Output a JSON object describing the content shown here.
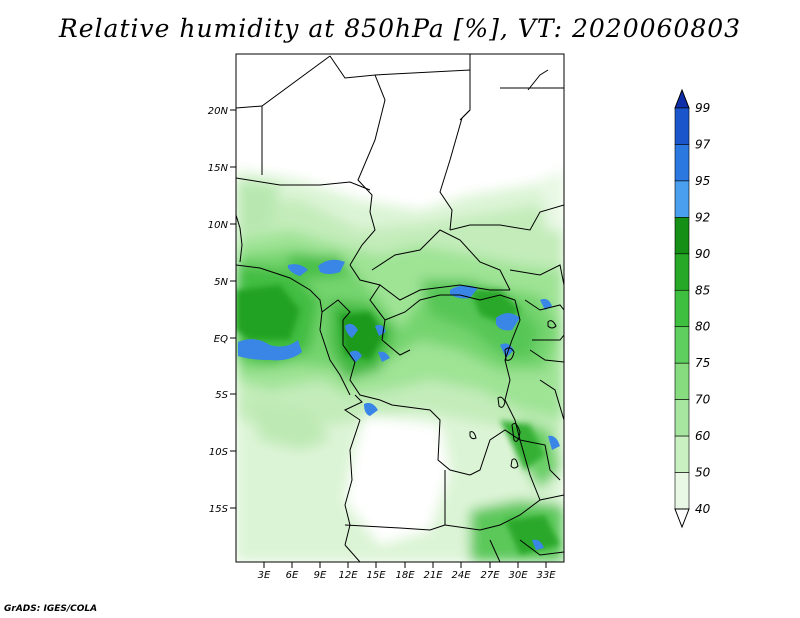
{
  "title": "Relative humidity at 850hPa [%], VT: 2020060803",
  "credit": "GrADS: IGES/COLA",
  "latitude_labels": [
    "20N",
    "15N",
    "10N",
    "5N",
    "EQ",
    "5S",
    "10S",
    "15S"
  ],
  "longitude_labels": [
    "3E",
    "6E",
    "9E",
    "12E",
    "15E",
    "18E",
    "21E",
    "24E",
    "27E",
    "30E",
    "33E"
  ],
  "colorbar": {
    "levels": [
      "40",
      "50",
      "60",
      "70",
      "75",
      "80",
      "85",
      "90",
      "92",
      "95",
      "97",
      "99"
    ],
    "colors": [
      "#ffffff",
      "#e8f8e4",
      "#c9f0c0",
      "#a7e6a0",
      "#86dc7e",
      "#5fcf5f",
      "#3fbf3f",
      "#27a827",
      "#158f15",
      "#4aa0ee",
      "#2a78e0",
      "#1a55cc",
      "#0e2fa8"
    ]
  }
}
